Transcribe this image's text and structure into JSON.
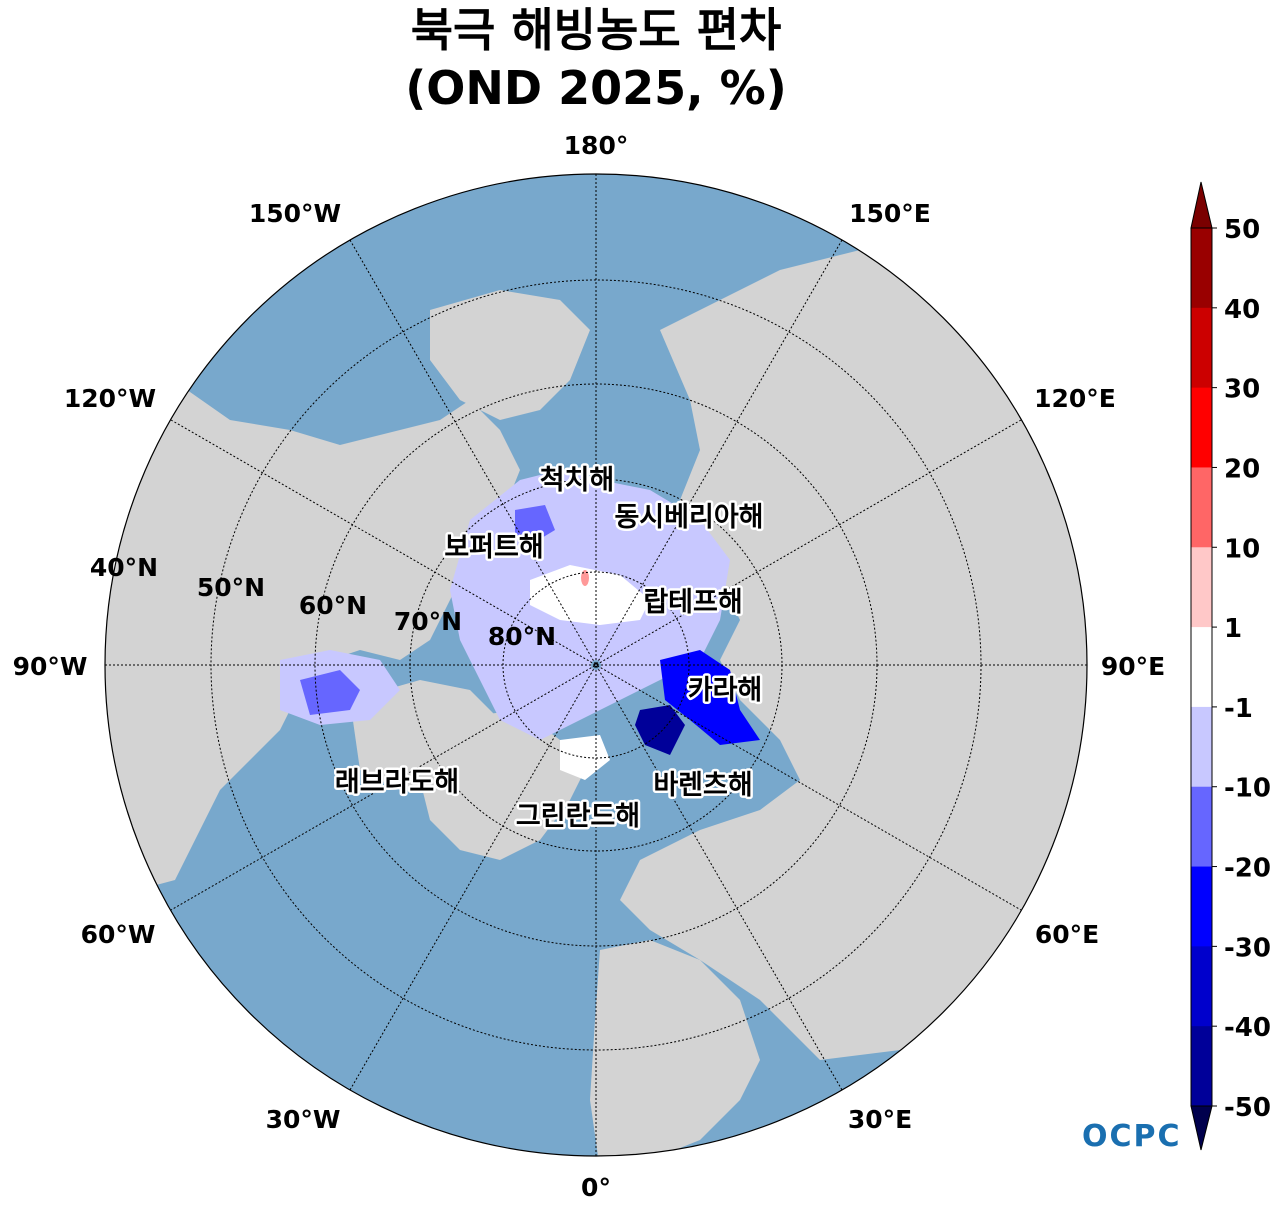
{
  "title": {
    "line1": "북극 해빙농도 편차",
    "line2": "(OND 2025, %)"
  },
  "longitude_labels": [
    "180°",
    "150°E",
    "120°E",
    "90°E",
    "60°E",
    "30°E",
    "0°",
    "30°W",
    "60°W",
    "90°W",
    "120°W",
    "150°W"
  ],
  "latitude_labels": [
    "40°N",
    "50°N",
    "60°N",
    "70°N",
    "80°N"
  ],
  "sea_labels": [
    "척치해",
    "동시베리아해",
    "보퍼트해",
    "랍테프해",
    "카라해",
    "바렌츠해",
    "그린란드해",
    "래브라도해"
  ],
  "colorbar": {
    "ticks": [
      "50",
      "40",
      "30",
      "20",
      "10",
      "1",
      "-1",
      "-10",
      "-20",
      "-30",
      "-40",
      "-50"
    ],
    "colors": [
      "#990000",
      "#cc0000",
      "#ff0000",
      "#ff6666",
      "#ffc8c8",
      "#ffffff",
      "#c8c8ff",
      "#6666ff",
      "#0000ff",
      "#0000cc",
      "#000099",
      "#000066"
    ],
    "extend_max_color": "#7a0000",
    "extend_min_color": "#00004d"
  },
  "logo": {
    "text": "OCPC"
  },
  "colors": {
    "ocean": "#78a8cc",
    "land": "#d3d3d3",
    "ice_white": "#ffffff",
    "anomaly_light": "#c8c8ff"
  }
}
